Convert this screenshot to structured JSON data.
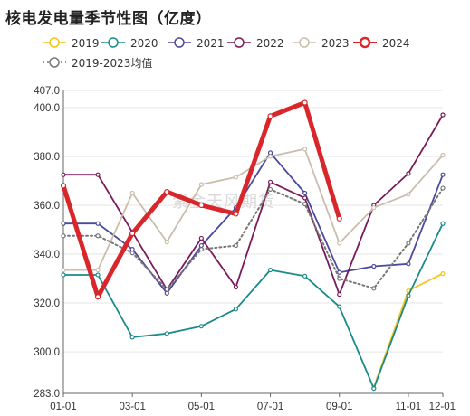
{
  "title": "核电发电量季节性图（亿度）",
  "watermark": "紫金天风期货",
  "chart_data": {
    "type": "line",
    "title": "核电发电量季节性图（亿度）",
    "xlabel": "",
    "ylabel": "",
    "x": [
      "01-01",
      "02-01",
      "03-01",
      "04-01",
      "05-01",
      "06-01",
      "07-01",
      "08-01",
      "09-01",
      "10-01",
      "11-01",
      "12-01"
    ],
    "x_ticks": [
      "01-01",
      "03-01",
      "05-01",
      "07-01",
      "09-01",
      "11-01",
      "12-01"
    ],
    "y_ticks": [
      "283.0",
      "300.0",
      "320.0",
      "340.0",
      "360.0",
      "380.0",
      "400.0",
      "407.0"
    ],
    "ylim": [
      283.0,
      407.0
    ],
    "grid": "horizontal",
    "legend_position": "top",
    "series": [
      {
        "name": "2019",
        "color": "#f5c518",
        "values": [
          null,
          null,
          null,
          null,
          null,
          null,
          null,
          null,
          null,
          285.5,
          325,
          332
        ]
      },
      {
        "name": "2020",
        "color": "#1a8a8a",
        "values": [
          331.5,
          331.5,
          306,
          307.5,
          310.5,
          317.5,
          333.5,
          331,
          318.5,
          285,
          323,
          352.5
        ]
      },
      {
        "name": "2021",
        "color": "#4a4a9e",
        "values": [
          352.5,
          352.5,
          342,
          324,
          343.5,
          359,
          381.5,
          365,
          332.5,
          335,
          336,
          372.5
        ]
      },
      {
        "name": "2022",
        "color": "#7b1a5a",
        "values": [
          372.5,
          372.5,
          349,
          325.5,
          346.5,
          326.5,
          369.5,
          363,
          323.5,
          360,
          373,
          397
        ]
      },
      {
        "name": "2023",
        "color": "#c9beac",
        "values": [
          333.5,
          333.5,
          365,
          345,
          368.5,
          371.5,
          380,
          383,
          344.5,
          359,
          364.5,
          380.5
        ]
      },
      {
        "name": "2024",
        "color": "#d9262b",
        "values": [
          368,
          322.5,
          348.5,
          365.5,
          360,
          356.5,
          396.5,
          402,
          354.5,
          null,
          null,
          null
        ]
      },
      {
        "name": "2019-2023均值",
        "color": "#777777",
        "dashed": true,
        "values": [
          347.5,
          347.5,
          340.5,
          325.5,
          342,
          343.5,
          366.5,
          360.5,
          330,
          326,
          344.5,
          367
        ]
      }
    ]
  }
}
